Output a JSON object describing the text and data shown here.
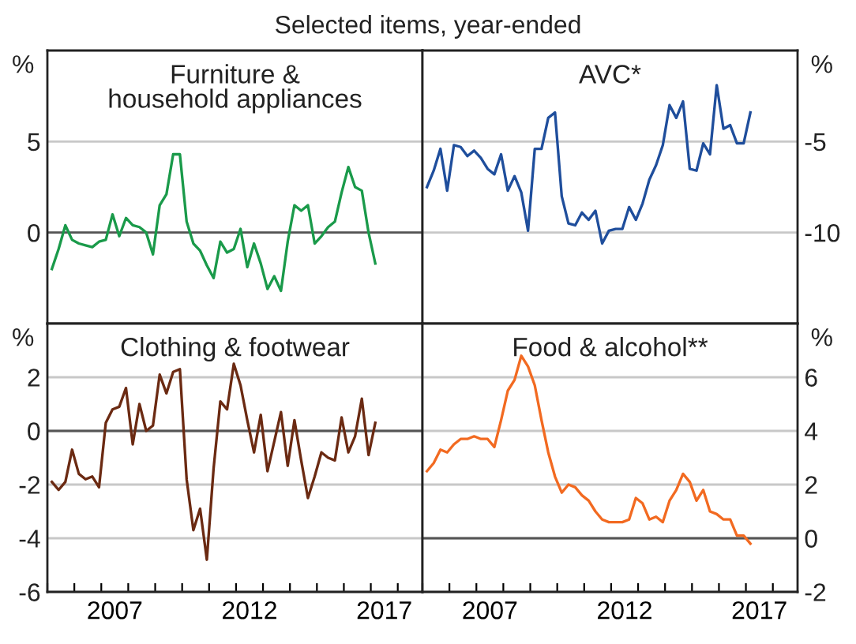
{
  "chart_data": [
    {
      "type": "line",
      "title": "Furniture &\nhousehold appliances",
      "subtitle": "Selected items, year-ended",
      "ylabel": "%",
      "x": [
        "2005-03",
        "2005-06",
        "2005-09",
        "2005-12",
        "2006-03",
        "2006-06",
        "2006-09",
        "2006-12",
        "2007-03",
        "2007-06",
        "2007-09",
        "2007-12",
        "2008-03",
        "2008-06",
        "2008-09",
        "2008-12",
        "2009-03",
        "2009-06",
        "2009-09",
        "2009-12",
        "2010-03",
        "2010-06",
        "2010-09",
        "2010-12",
        "2011-03",
        "2011-06",
        "2011-09",
        "2011-12",
        "2012-03",
        "2012-06",
        "2012-09",
        "2012-12",
        "2013-03",
        "2013-06",
        "2013-09",
        "2013-12",
        "2014-03",
        "2014-06",
        "2014-09",
        "2014-12",
        "2015-03",
        "2015-06",
        "2015-09",
        "2015-12",
        "2016-03",
        "2016-06",
        "2016-09",
        "2016-12",
        "2017-03"
      ],
      "xlim": [
        "2005-01",
        "2018-12"
      ],
      "ylim": [
        -5,
        10
      ],
      "yticks": [
        0,
        5
      ],
      "grid": "y",
      "tick_labels": "y",
      "ref_lines": [
        {
          "axis": "y",
          "value": 0,
          "color": "#555555"
        }
      ],
      "series": [
        {
          "color": "#1a9a4a",
          "values": [
            -2.0,
            -0.9,
            0.4,
            -0.4,
            -0.6,
            -0.7,
            -0.8,
            -0.5,
            -0.4,
            1.0,
            -0.2,
            0.8,
            0.4,
            0.3,
            0,
            -1.2,
            1.5,
            2.1,
            4.3,
            4.3,
            0.6,
            -0.6,
            -1.0,
            -1.8,
            -2.5,
            -0.5,
            -1.1,
            -0.9,
            0.2,
            -1.9,
            -0.6,
            -1.7,
            -3.1,
            -2.4,
            -3.2,
            -0.5,
            1.5,
            1.2,
            1.5,
            -0.6,
            -0.2,
            0.3,
            0.6,
            2.2,
            3.6,
            2.5,
            2.3,
            0,
            -1.7
          ]
        }
      ]
    },
    {
      "type": "line",
      "title": "AVC*",
      "ylabel": "%",
      "x": [
        "2005-03",
        "2005-06",
        "2005-09",
        "2005-12",
        "2006-03",
        "2006-06",
        "2006-09",
        "2006-12",
        "2007-03",
        "2007-06",
        "2007-09",
        "2007-12",
        "2008-03",
        "2008-06",
        "2008-09",
        "2008-12",
        "2009-03",
        "2009-06",
        "2009-09",
        "2009-12",
        "2010-03",
        "2010-06",
        "2010-09",
        "2010-12",
        "2011-03",
        "2011-06",
        "2011-09",
        "2011-12",
        "2012-03",
        "2012-06",
        "2012-09",
        "2012-12",
        "2013-03",
        "2013-06",
        "2013-09",
        "2013-12",
        "2014-03",
        "2014-06",
        "2014-09",
        "2014-12",
        "2015-03",
        "2015-06",
        "2015-09",
        "2015-12",
        "2016-03",
        "2016-06",
        "2016-09",
        "2016-12",
        "2017-03"
      ],
      "xlim": [
        "2005-01",
        "2018-12"
      ],
      "ylim": [
        -15,
        0
      ],
      "yticks": [
        -10,
        -5
      ],
      "grid": "y",
      "tick_labels": "y",
      "series": [
        {
          "color": "#1f4e9c",
          "values": [
            -7.5,
            -6.6,
            -5.4,
            -7.7,
            -5.2,
            -5.3,
            -5.8,
            -5.5,
            -5.9,
            -6.5,
            -6.8,
            -5.7,
            -7.7,
            -6.9,
            -7.8,
            -9.9,
            -5.4,
            -5.4,
            -3.7,
            -3.4,
            -8.0,
            -9.5,
            -9.6,
            -8.9,
            -9.3,
            -8.8,
            -10.6,
            -9.9,
            -9.8,
            -9.8,
            -8.6,
            -9.3,
            -8.4,
            -7.1,
            -6.3,
            -5.2,
            -3.0,
            -3.7,
            -2.8,
            -6.5,
            -6.6,
            -5.1,
            -5.7,
            -1.9,
            -4.3,
            -4.1,
            -5.1,
            -5.1,
            -3.4
          ]
        }
      ]
    },
    {
      "type": "line",
      "title": "Clothing & footwear",
      "ylabel": "%",
      "x": [
        "2005-03",
        "2005-06",
        "2005-09",
        "2005-12",
        "2006-03",
        "2006-06",
        "2006-09",
        "2006-12",
        "2007-03",
        "2007-06",
        "2007-09",
        "2007-12",
        "2008-03",
        "2008-06",
        "2008-09",
        "2008-12",
        "2009-03",
        "2009-06",
        "2009-09",
        "2009-12",
        "2010-03",
        "2010-06",
        "2010-09",
        "2010-12",
        "2011-03",
        "2011-06",
        "2011-09",
        "2011-12",
        "2012-03",
        "2012-06",
        "2012-09",
        "2012-12",
        "2013-03",
        "2013-06",
        "2013-09",
        "2013-12",
        "2014-03",
        "2014-06",
        "2014-09",
        "2014-12",
        "2015-03",
        "2015-06",
        "2015-09",
        "2015-12",
        "2016-03",
        "2016-06",
        "2016-09",
        "2016-12",
        "2017-03"
      ],
      "xlim": [
        "2005-01",
        "2018-12"
      ],
      "xticks": [
        {
          "value": "2005-01",
          "label": null
        },
        {
          "value": "2006-01",
          "label": null
        },
        {
          "value": "2007-01",
          "label": null
        },
        {
          "value": "2007-07",
          "label": "2007"
        },
        {
          "value": "2008-01",
          "label": null
        },
        {
          "value": "2009-01",
          "label": null
        },
        {
          "value": "2010-01",
          "label": null
        },
        {
          "value": "2011-01",
          "label": null
        },
        {
          "value": "2012-01",
          "label": null
        },
        {
          "value": "2012-07",
          "label": "2012"
        },
        {
          "value": "2013-01",
          "label": null
        },
        {
          "value": "2014-01",
          "label": null
        },
        {
          "value": "2015-01",
          "label": null
        },
        {
          "value": "2016-01",
          "label": null
        },
        {
          "value": "2017-01",
          "label": null
        },
        {
          "value": "2017-07",
          "label": "2017"
        },
        {
          "value": "2018-01",
          "label": null
        }
      ],
      "ylim": [
        -6,
        4
      ],
      "yticks": [
        -6,
        -4,
        -2,
        0,
        2
      ],
      "grid": "y",
      "ref_lines": [
        {
          "axis": "y",
          "value": 0,
          "color": "#555555"
        }
      ],
      "series": [
        {
          "color": "#6b2a12",
          "values": [
            -1.9,
            -2.2,
            -1.9,
            -0.7,
            -1.6,
            -1.8,
            -1.7,
            -2.1,
            0.3,
            0.8,
            0.9,
            1.6,
            -0.5,
            1.0,
            0,
            0.2,
            2.1,
            1.4,
            2.2,
            2.3,
            -1.8,
            -3.7,
            -2.9,
            -4.8,
            -1.4,
            1.1,
            0.8,
            2.5,
            1.7,
            0.4,
            -0.8,
            0.6,
            -1.5,
            -0.4,
            0.7,
            -1.3,
            0.4,
            -1.1,
            -2.5,
            -1.7,
            -0.8,
            -1.0,
            -1.1,
            0.5,
            -0.8,
            -0.2,
            1.2,
            -0.9,
            0.3
          ]
        }
      ]
    },
    {
      "type": "line",
      "title": "Food & alcohol**",
      "ylabel": "%",
      "x": [
        "2005-03",
        "2005-06",
        "2005-09",
        "2005-12",
        "2006-03",
        "2006-06",
        "2006-09",
        "2006-12",
        "2007-03",
        "2007-06",
        "2007-09",
        "2007-12",
        "2008-03",
        "2008-06",
        "2008-09",
        "2008-12",
        "2009-03",
        "2009-06",
        "2009-09",
        "2009-12",
        "2010-03",
        "2010-06",
        "2010-09",
        "2010-12",
        "2011-03",
        "2011-06",
        "2011-09",
        "2011-12",
        "2012-03",
        "2012-06",
        "2012-09",
        "2012-12",
        "2013-03",
        "2013-06",
        "2013-09",
        "2013-12",
        "2014-03",
        "2014-06",
        "2014-09",
        "2014-12",
        "2015-03",
        "2015-06",
        "2015-09",
        "2015-12",
        "2016-03",
        "2016-06",
        "2016-09",
        "2016-12",
        "2017-03"
      ],
      "xlim": [
        "2005-01",
        "2018-12"
      ],
      "xticks": [
        {
          "value": "2005-01",
          "label": null
        },
        {
          "value": "2006-01",
          "label": null
        },
        {
          "value": "2007-01",
          "label": null
        },
        {
          "value": "2007-07",
          "label": "2007"
        },
        {
          "value": "2008-01",
          "label": null
        },
        {
          "value": "2009-01",
          "label": null
        },
        {
          "value": "2010-01",
          "label": null
        },
        {
          "value": "2011-01",
          "label": null
        },
        {
          "value": "2012-01",
          "label": null
        },
        {
          "value": "2012-07",
          "label": "2012"
        },
        {
          "value": "2013-01",
          "label": null
        },
        {
          "value": "2014-01",
          "label": null
        },
        {
          "value": "2015-01",
          "label": null
        },
        {
          "value": "2016-01",
          "label": null
        },
        {
          "value": "2017-01",
          "label": null
        },
        {
          "value": "2017-07",
          "label": "2017"
        },
        {
          "value": "2018-01",
          "label": null
        }
      ],
      "ylim": [
        -2,
        8
      ],
      "yticks": [
        -2,
        0,
        2,
        4,
        6
      ],
      "grid": "y",
      "ref_lines": [
        {
          "axis": "y",
          "value": 0,
          "color": "#555555"
        }
      ],
      "series": [
        {
          "color": "#f26a21",
          "values": [
            2.5,
            2.8,
            3.3,
            3.2,
            3.5,
            3.7,
            3.7,
            3.8,
            3.7,
            3.7,
            3.4,
            4.4,
            5.5,
            5.9,
            6.8,
            6.4,
            5.7,
            4.4,
            3.2,
            2.3,
            1.7,
            2.0,
            1.9,
            1.6,
            1.4,
            1.0,
            0.7,
            0.6,
            0.6,
            0.6,
            0.7,
            1.5,
            1.3,
            0.7,
            0.8,
            0.6,
            1.4,
            1.8,
            2.4,
            2.1,
            1.4,
            1.8,
            1.0,
            0.9,
            0.7,
            0.7,
            0.1,
            0.1,
            -0.2
          ]
        }
      ]
    }
  ]
}
